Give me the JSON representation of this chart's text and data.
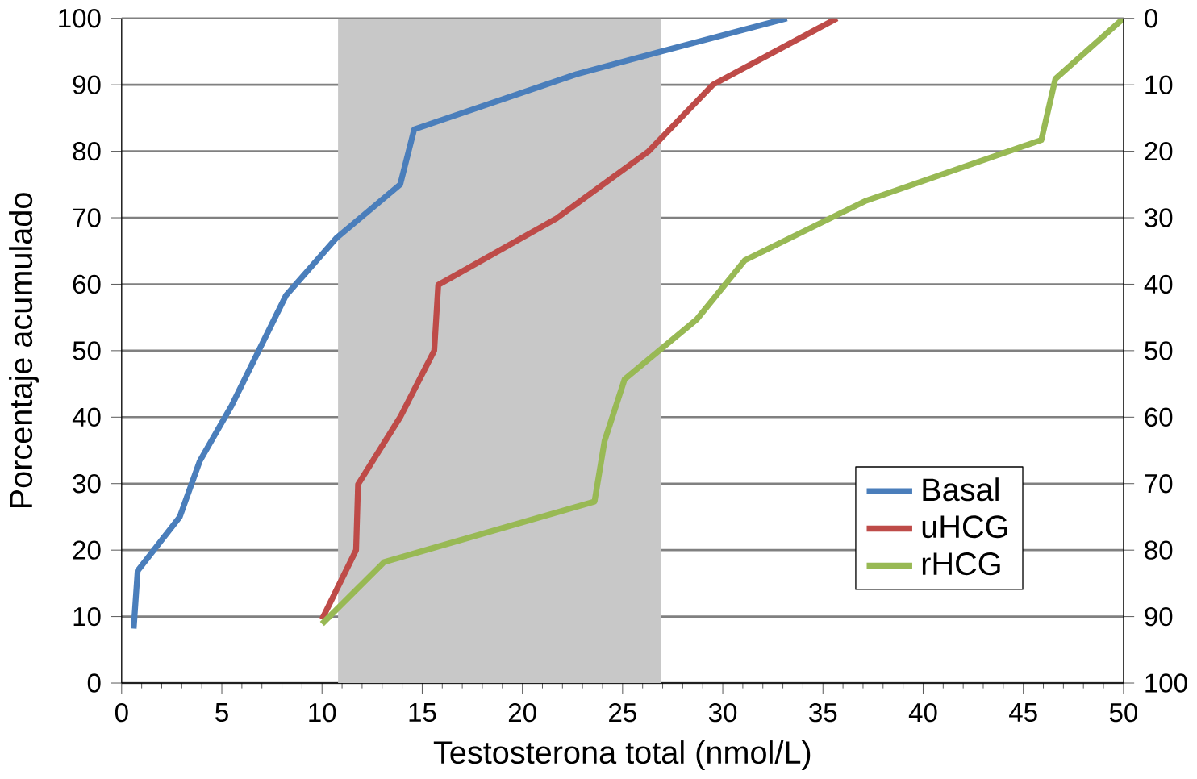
{
  "chart_data": {
    "type": "line",
    "xlabel": "Testosterona total (nmol/L)",
    "ylabel": "Porcentaje acumulado",
    "xlim": [
      0,
      50
    ],
    "xticks": [
      0,
      5,
      10,
      15,
      20,
      25,
      30,
      35,
      40,
      45,
      50
    ],
    "ylim": [
      0,
      100
    ],
    "yticks": [
      0,
      10,
      20,
      30,
      40,
      50,
      60,
      70,
      80,
      90,
      100
    ],
    "y2lim": [
      100,
      0
    ],
    "y2ticks": [
      0,
      10,
      20,
      30,
      40,
      50,
      60,
      70,
      80,
      90,
      100
    ],
    "grid": "y",
    "legend": "bottom right",
    "marker": "none",
    "line_style": "solid",
    "bands": [
      {
        "axis": "x",
        "from": 10.8,
        "to": 26.9,
        "color": "#c8c8c8"
      }
    ],
    "series": [
      {
        "name": "Basal",
        "color": "#4a7ebb",
        "x": [
          0.6,
          0.8,
          2.9,
          3.9,
          5.5,
          8.2,
          10.7,
          13.9,
          14.6,
          22.7,
          26.9,
          33.2
        ],
        "values": [
          8.2,
          16.9,
          25,
          33.4,
          41.8,
          58.3,
          66.9,
          75,
          83.3,
          91.6,
          95,
          100
        ]
      },
      {
        "name": "uHCG",
        "color": "#be4b48",
        "x": [
          10,
          11.7,
          11.8,
          13.9,
          15.6,
          15.8,
          21.7,
          26.3,
          29.5,
          35.7
        ],
        "values": [
          9.6,
          20,
          29.9,
          40,
          50,
          59.9,
          69.9,
          80,
          90,
          100
        ]
      },
      {
        "name": "rHCG",
        "color": "#98b954",
        "x": [
          10,
          13.1,
          23.6,
          24.1,
          25.1,
          28.7,
          31.1,
          37.1,
          45.9,
          46.6,
          50
        ],
        "values": [
          8.9,
          18.2,
          27.3,
          36.4,
          45.7,
          54.7,
          63.6,
          72.5,
          81.7,
          90.9,
          100
        ]
      }
    ]
  }
}
